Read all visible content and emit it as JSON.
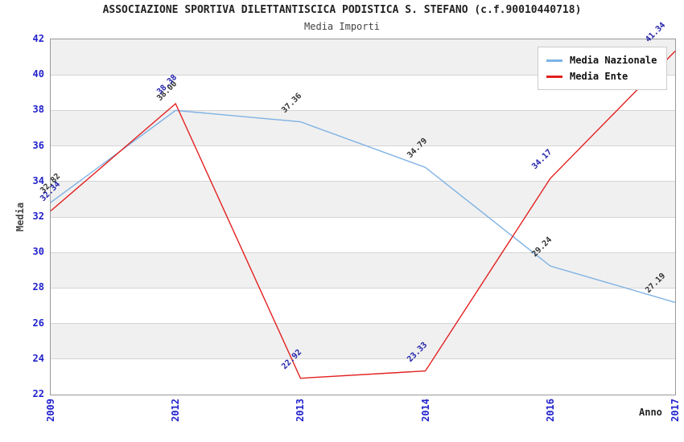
{
  "title": "ASSOCIAZIONE SPORTIVA DILETTANTISCICA PODISTICA S. STEFANO (c.f.90010440718)",
  "subtitle": "Media Importi",
  "chart_data": {
    "type": "line",
    "categories": [
      "2009",
      "2012",
      "2013",
      "2014",
      "2016",
      "2017"
    ],
    "series": [
      {
        "name": "Media Nazionale",
        "color": "#7EB2E4",
        "label_color": "#333333",
        "values": [
          32.82,
          38.0,
          37.36,
          34.79,
          29.24,
          27.19
        ]
      },
      {
        "name": "Media Ente",
        "color": "#E32020",
        "label_color": "#2222AA",
        "values": [
          32.34,
          38.38,
          22.92,
          23.33,
          34.17,
          41.34
        ]
      }
    ],
    "xlabel": "Anno",
    "ylabel": "Media",
    "ylim": [
      22,
      42
    ],
    "ytick_step": 2,
    "yticks": [
      42,
      40,
      38,
      36,
      34,
      32,
      30,
      28,
      26,
      24,
      22
    ],
    "grid": "horizontal-bands",
    "band_colors": [
      "#F0F0F0",
      "#FFFFFF"
    ],
    "gridline_color": "#D4D4D4",
    "axis_tick_color": "#2222CC",
    "legend_position": "top-right",
    "legend_entries": [
      "Media Nazionale",
      "Media Ente"
    ]
  }
}
